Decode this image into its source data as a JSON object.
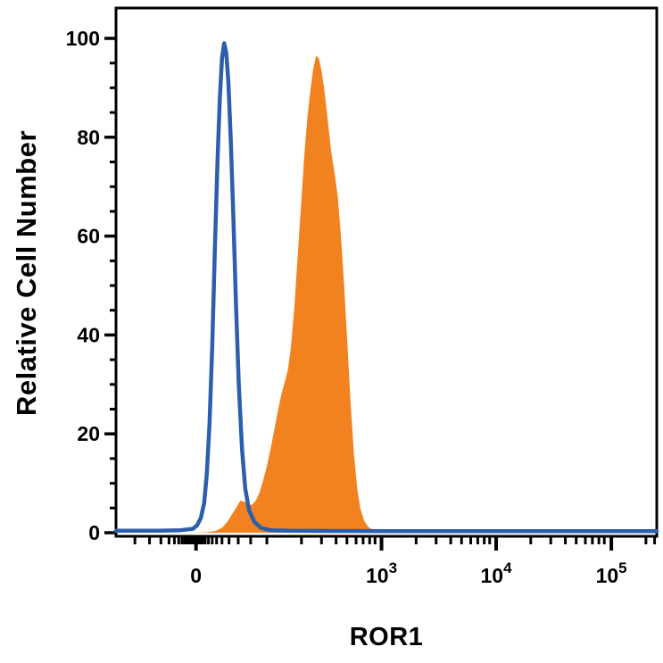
{
  "figure": {
    "background": "#FFFFFF",
    "axis_color": "#000000"
  },
  "chart_data": {
    "type": "area",
    "subtype": "flow-cytometry-overlay-histogram",
    "title": "",
    "xlabel": "ROR1",
    "ylabel": "Relative Cell Number",
    "x_scale": "biexponential-log",
    "ylim": [
      0,
      100
    ],
    "grid": false,
    "legend": "none",
    "y_major_ticks": [
      0,
      20,
      40,
      60,
      80,
      100
    ],
    "y_minor_step": 5,
    "x_major_ticks": [
      {
        "label": "0",
        "exp": "",
        "f": 0.148
      },
      {
        "label": "10",
        "exp": "3",
        "f": 0.491
      },
      {
        "label": "10",
        "exp": "4",
        "f": 0.703
      },
      {
        "label": "10",
        "exp": "5",
        "f": 0.916
      }
    ],
    "x_minor_ticks_f": [
      0.035,
      0.062,
      0.083,
      0.098,
      0.108,
      0.116,
      0.122,
      0.127,
      0.131,
      0.135,
      0.138,
      0.141,
      0.144,
      0.152,
      0.156,
      0.16,
      0.165,
      0.171,
      0.178,
      0.186,
      0.196,
      0.209,
      0.226,
      0.249,
      0.279,
      0.343,
      0.38,
      0.407,
      0.427,
      0.444,
      0.457,
      0.469,
      0.479,
      0.555,
      0.592,
      0.619,
      0.639,
      0.656,
      0.669,
      0.681,
      0.691,
      0.767,
      0.804,
      0.831,
      0.851,
      0.868,
      0.881,
      0.893,
      0.903,
      0.98,
      0.996
    ],
    "series": [
      {
        "name": "orange-filled-histogram",
        "style": "filled-area",
        "color": "#F2821F",
        "peak_y": 96.5,
        "points": [
          [
            0,
            0
          ],
          [
            0.14,
            0
          ],
          [
            0.17,
            0.1
          ],
          [
            0.185,
            0.4
          ],
          [
            0.196,
            1
          ],
          [
            0.206,
            2.2
          ],
          [
            0.215,
            3.8
          ],
          [
            0.223,
            5.2
          ],
          [
            0.23,
            6.5
          ],
          [
            0.237,
            6.3
          ],
          [
            0.244,
            5.8
          ],
          [
            0.251,
            5.6
          ],
          [
            0.258,
            6.4
          ],
          [
            0.265,
            8
          ],
          [
            0.272,
            10.5
          ],
          [
            0.279,
            13.5
          ],
          [
            0.286,
            17
          ],
          [
            0.293,
            21
          ],
          [
            0.3,
            25
          ],
          [
            0.306,
            28
          ],
          [
            0.312,
            30.5
          ],
          [
            0.318,
            33
          ],
          [
            0.324,
            38
          ],
          [
            0.33,
            46
          ],
          [
            0.336,
            56
          ],
          [
            0.342,
            66
          ],
          [
            0.348,
            76
          ],
          [
            0.354,
            84
          ],
          [
            0.36,
            90
          ],
          [
            0.365,
            94
          ],
          [
            0.37,
            96.5
          ],
          [
            0.375,
            96
          ],
          [
            0.38,
            93.5
          ],
          [
            0.386,
            89
          ],
          [
            0.392,
            83
          ],
          [
            0.398,
            77
          ],
          [
            0.404,
            73
          ],
          [
            0.41,
            68
          ],
          [
            0.416,
            60
          ],
          [
            0.422,
            50
          ],
          [
            0.428,
            38
          ],
          [
            0.434,
            26
          ],
          [
            0.44,
            16
          ],
          [
            0.446,
            9
          ],
          [
            0.452,
            4.8
          ],
          [
            0.459,
            2.4
          ],
          [
            0.467,
            1.1
          ],
          [
            0.477,
            0.5
          ],
          [
            0.49,
            0.2
          ],
          [
            0.52,
            0.05
          ],
          [
            1,
            0
          ]
        ]
      },
      {
        "name": "blue-outline-histogram",
        "style": "line",
        "color": "#2B5EAC",
        "stroke_width": 4.5,
        "peak_y": 99,
        "points": [
          [
            0,
            0.4
          ],
          [
            0.08,
            0.4
          ],
          [
            0.12,
            0.5
          ],
          [
            0.142,
            0.8
          ],
          [
            0.15,
            1.5
          ],
          [
            0.157,
            3
          ],
          [
            0.163,
            6
          ],
          [
            0.168,
            12
          ],
          [
            0.173,
            22
          ],
          [
            0.178,
            38
          ],
          [
            0.183,
            58
          ],
          [
            0.188,
            76
          ],
          [
            0.192,
            88
          ],
          [
            0.196,
            96
          ],
          [
            0.2,
            99
          ],
          [
            0.204,
            97
          ],
          [
            0.208,
            91
          ],
          [
            0.212,
            80
          ],
          [
            0.217,
            64
          ],
          [
            0.222,
            46
          ],
          [
            0.227,
            30
          ],
          [
            0.233,
            17
          ],
          [
            0.239,
            9
          ],
          [
            0.246,
            4.5
          ],
          [
            0.256,
            2.2
          ],
          [
            0.268,
            1
          ],
          [
            0.285,
            0.5
          ],
          [
            0.32,
            0.4
          ],
          [
            0.5,
            0.3
          ],
          [
            0.75,
            0.3
          ],
          [
            1,
            0.3
          ]
        ]
      }
    ]
  }
}
